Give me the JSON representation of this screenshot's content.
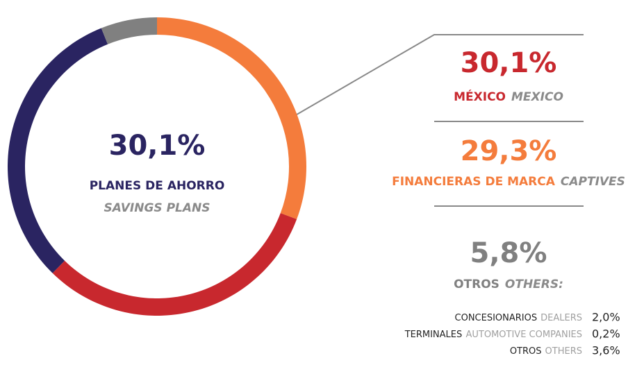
{
  "chart_data": {
    "type": "pie",
    "donut": true,
    "series": [
      {
        "name": "FINANCIERAS DE MARCA",
        "name_en": "CAPTIVES",
        "value": 29.3,
        "value_label": "29,3%",
        "color": "#f47c3c"
      },
      {
        "name": "MÉXICO",
        "name_en": "MEXICO",
        "value": 30.1,
        "value_label": "30,1%",
        "color": "#c8282e"
      },
      {
        "name": "PLANES DE AHORRO",
        "name_en": "SAVINGS PLANS",
        "value": 30.1,
        "value_label": "30,1%",
        "color": "#2a2461"
      },
      {
        "name": "OTROS",
        "name_en": "OTHERS:",
        "value": 5.8,
        "value_label": "5,8%",
        "color": "#808080"
      }
    ],
    "breakdown": [
      {
        "name": "CONCESIONARIOS",
        "name_en": "DEALERS",
        "value": 2.0,
        "value_label": "2,0%"
      },
      {
        "name": "TERMINALES",
        "name_en": "AUTOMOTIVE COMPANIES",
        "value": 0.2,
        "value_label": "0,2%"
      },
      {
        "name": "OTROS",
        "name_en": "OTHERS",
        "value": 3.6,
        "value_label": "3,6%"
      }
    ]
  }
}
